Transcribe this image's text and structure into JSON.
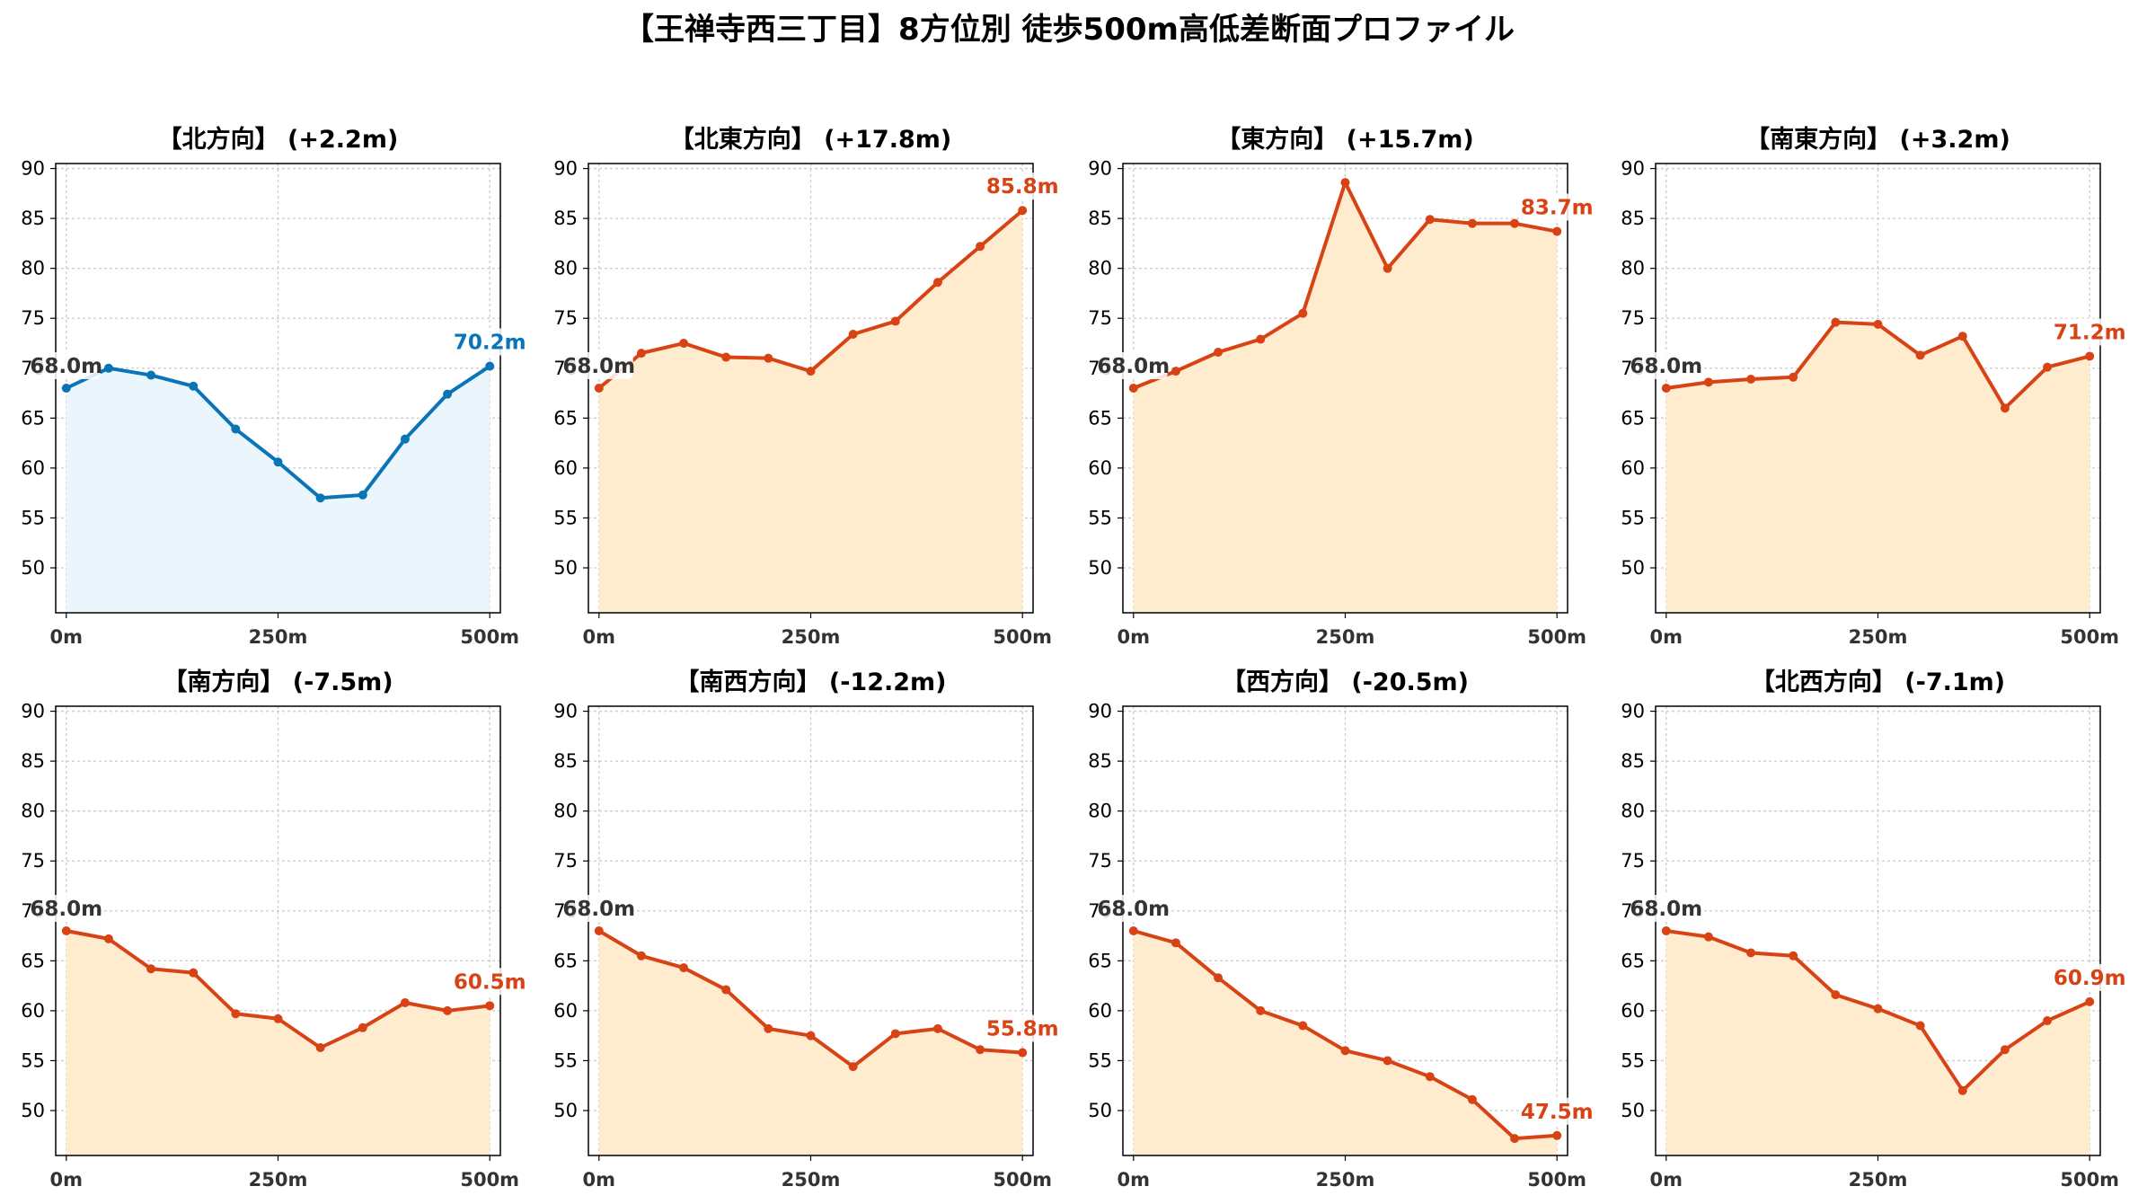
{
  "figure_title": "【王禅寺西三丁目】8方位別 徒歩500m高低差断面プロファイル",
  "colors": {
    "up": "#d84315",
    "up_fill": "#ffeccf",
    "flat": "#0a74b8",
    "flat_fill": "#eaf6fb",
    "start_label": "#333333",
    "grid": "#cccccc"
  },
  "chart_data": [
    {
      "type": "area",
      "direction": "北方向",
      "title": "【北方向】 (+2.2m)",
      "line_color": "#0a74b8",
      "fill_color": "#eaf6fb",
      "x": [
        0,
        50,
        100,
        150,
        200,
        250,
        300,
        350,
        400,
        450,
        500
      ],
      "y": [
        68.0,
        70.0,
        69.3,
        68.2,
        63.9,
        60.6,
        57.0,
        57.3,
        62.9,
        67.4,
        70.2
      ],
      "start_label": "68.0m",
      "end_label": "70.2m",
      "xlim": [
        0,
        500
      ],
      "ylim": [
        45.5,
        90.5
      ],
      "xticks": [
        "0m",
        "250m",
        "500m"
      ],
      "yticks": [
        50,
        55,
        60,
        65,
        70,
        75,
        80,
        85,
        90
      ],
      "grid": true
    },
    {
      "type": "area",
      "direction": "北東方向",
      "title": "【北東方向】 (+17.8m)",
      "line_color": "#d84315",
      "fill_color": "#ffeccf",
      "x": [
        0,
        50,
        100,
        150,
        200,
        250,
        300,
        350,
        400,
        450,
        500
      ],
      "y": [
        68.0,
        71.5,
        72.5,
        71.1,
        71.0,
        69.7,
        73.4,
        74.7,
        78.6,
        82.2,
        85.8
      ],
      "start_label": "68.0m",
      "end_label": "85.8m",
      "xlim": [
        0,
        500
      ],
      "ylim": [
        45.5,
        90.5
      ],
      "xticks": [
        "0m",
        "250m",
        "500m"
      ],
      "yticks": [
        50,
        55,
        60,
        65,
        70,
        75,
        80,
        85,
        90
      ],
      "grid": true
    },
    {
      "type": "area",
      "direction": "東方向",
      "title": "【東方向】 (+15.7m)",
      "line_color": "#d84315",
      "fill_color": "#ffeccf",
      "x": [
        0,
        50,
        100,
        150,
        200,
        250,
        300,
        350,
        400,
        450,
        500
      ],
      "y": [
        68.0,
        69.7,
        71.6,
        72.9,
        75.5,
        88.6,
        80.0,
        84.9,
        84.5,
        84.5,
        83.7
      ],
      "start_label": "68.0m",
      "end_label": "83.7m",
      "xlim": [
        0,
        500
      ],
      "ylim": [
        45.5,
        90.5
      ],
      "xticks": [
        "0m",
        "250m",
        "500m"
      ],
      "yticks": [
        50,
        55,
        60,
        65,
        70,
        75,
        80,
        85,
        90
      ],
      "grid": true
    },
    {
      "type": "area",
      "direction": "南東方向",
      "title": "【南東方向】 (+3.2m)",
      "line_color": "#d84315",
      "fill_color": "#ffeccf",
      "x": [
        0,
        50,
        100,
        150,
        200,
        250,
        300,
        350,
        400,
        450,
        500
      ],
      "y": [
        68.0,
        68.6,
        68.9,
        69.1,
        74.6,
        74.4,
        71.3,
        73.2,
        66.0,
        70.1,
        71.2
      ],
      "start_label": "68.0m",
      "end_label": "71.2m",
      "xlim": [
        0,
        500
      ],
      "ylim": [
        45.5,
        90.5
      ],
      "xticks": [
        "0m",
        "250m",
        "500m"
      ],
      "yticks": [
        50,
        55,
        60,
        65,
        70,
        75,
        80,
        85,
        90
      ],
      "grid": true
    },
    {
      "type": "area",
      "direction": "南方向",
      "title": "【南方向】 (-7.5m)",
      "line_color": "#d84315",
      "fill_color": "#ffeccf",
      "x": [
        0,
        50,
        100,
        150,
        200,
        250,
        300,
        350,
        400,
        450,
        500
      ],
      "y": [
        68.0,
        67.2,
        64.2,
        63.8,
        59.7,
        59.2,
        56.3,
        58.3,
        60.8,
        60.0,
        60.5
      ],
      "start_label": "68.0m",
      "end_label": "60.5m",
      "xlim": [
        0,
        500
      ],
      "ylim": [
        45.5,
        90.5
      ],
      "xticks": [
        "0m",
        "250m",
        "500m"
      ],
      "yticks": [
        50,
        55,
        60,
        65,
        70,
        75,
        80,
        85,
        90
      ],
      "grid": true
    },
    {
      "type": "area",
      "direction": "南西方向",
      "title": "【南西方向】 (-12.2m)",
      "line_color": "#d84315",
      "fill_color": "#ffeccf",
      "x": [
        0,
        50,
        100,
        150,
        200,
        250,
        300,
        350,
        400,
        450,
        500
      ],
      "y": [
        68.0,
        65.5,
        64.3,
        62.1,
        58.2,
        57.5,
        54.4,
        57.7,
        58.2,
        56.1,
        55.8
      ],
      "start_label": "68.0m",
      "end_label": "55.8m",
      "xlim": [
        0,
        500
      ],
      "ylim": [
        45.5,
        90.5
      ],
      "xticks": [
        "0m",
        "250m",
        "500m"
      ],
      "yticks": [
        50,
        55,
        60,
        65,
        70,
        75,
        80,
        85,
        90
      ],
      "grid": true
    },
    {
      "type": "area",
      "direction": "西方向",
      "title": "【西方向】 (-20.5m)",
      "line_color": "#d84315",
      "fill_color": "#ffeccf",
      "x": [
        0,
        50,
        100,
        150,
        200,
        250,
        300,
        350,
        400,
        450,
        500
      ],
      "y": [
        68.0,
        66.8,
        63.3,
        60.0,
        58.5,
        56.0,
        55.0,
        53.4,
        51.1,
        47.2,
        47.5
      ],
      "start_label": "68.0m",
      "end_label": "47.5m",
      "xlim": [
        0,
        500
      ],
      "ylim": [
        45.5,
        90.5
      ],
      "xticks": [
        "0m",
        "250m",
        "500m"
      ],
      "yticks": [
        50,
        55,
        60,
        65,
        70,
        75,
        80,
        85,
        90
      ],
      "grid": true
    },
    {
      "type": "area",
      "direction": "北西方向",
      "title": "【北西方向】 (-7.1m)",
      "line_color": "#d84315",
      "fill_color": "#ffeccf",
      "x": [
        0,
        50,
        100,
        150,
        200,
        250,
        300,
        350,
        400,
        450,
        500
      ],
      "y": [
        68.0,
        67.4,
        65.8,
        65.5,
        61.6,
        60.2,
        58.5,
        52.0,
        56.1,
        59.0,
        60.9
      ],
      "start_label": "68.0m",
      "end_label": "60.9m",
      "xlim": [
        0,
        500
      ],
      "ylim": [
        45.5,
        90.5
      ],
      "xticks": [
        "0m",
        "250m",
        "500m"
      ],
      "yticks": [
        50,
        55,
        60,
        65,
        70,
        75,
        80,
        85,
        90
      ],
      "grid": true
    }
  ]
}
